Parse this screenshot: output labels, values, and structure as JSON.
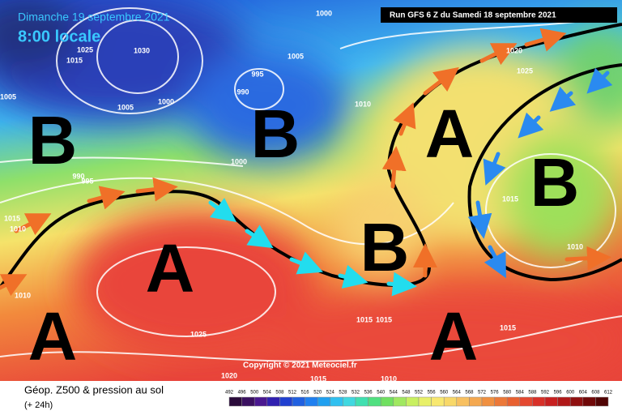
{
  "header": {
    "date": "Dimanche 19 septembre 2021",
    "time": "8:00 locale",
    "run": "Run GFS 6 Z du Samedi 18 septembre 2021"
  },
  "copyright": "Copyright © 2021 Meteociel.fr",
  "footer": {
    "title": "Géop. Z500 & pression au sol",
    "lead": "(+ 24h)"
  },
  "centers": [
    "B",
    "B",
    "A",
    "A",
    "A",
    "B",
    "B",
    "A"
  ],
  "isobar_labels": [
    "1000",
    "1025",
    "1030",
    "1015",
    "1005",
    "1005",
    "1000",
    "995",
    "990",
    "1005",
    "1000",
    "990",
    "995",
    "1015",
    "1010",
    "1010",
    "1025",
    "1020",
    "1015",
    "1010",
    "1015",
    "1015",
    "1015",
    "1015",
    "1010",
    "1010",
    "1020",
    "1025"
  ],
  "colorbar": {
    "ticks": [
      492,
      496,
      500,
      504,
      508,
      512,
      516,
      520,
      524,
      528,
      532,
      536,
      540,
      544,
      548,
      552,
      556,
      560,
      564,
      568,
      572,
      576,
      580,
      584,
      588,
      592,
      596,
      600,
      604,
      608,
      612
    ]
  }
}
